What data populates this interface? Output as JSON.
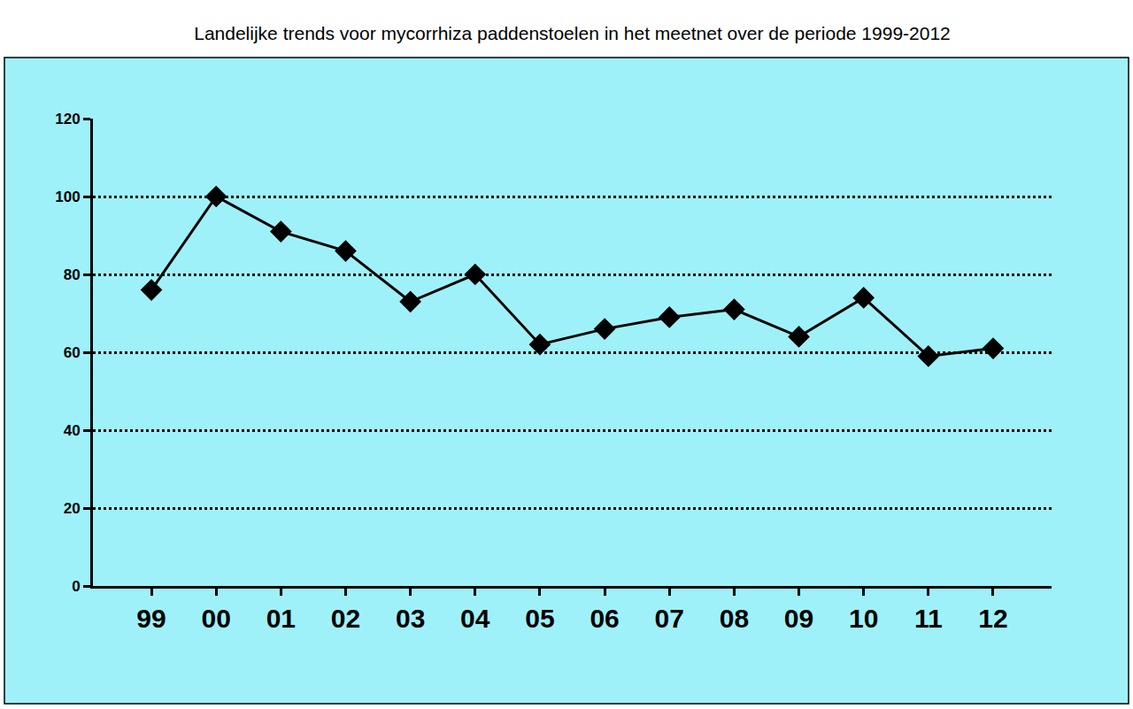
{
  "chart_data": {
    "type": "line",
    "title": "Landelijke trends voor mycorrhiza paddenstoelen in het meetnet over de periode 1999-2012",
    "categories": [
      "99",
      "00",
      "01",
      "02",
      "03",
      "04",
      "05",
      "06",
      "07",
      "08",
      "09",
      "10",
      "11",
      "12"
    ],
    "values": [
      76,
      100,
      91,
      86,
      73,
      80,
      62,
      66,
      69,
      71,
      64,
      74,
      59,
      61
    ],
    "color": "#000000",
    "marker": "diamond",
    "line_style": "solid",
    "ylim": [
      0,
      120
    ],
    "yticks": [
      0,
      20,
      40,
      60,
      80,
      100,
      120
    ],
    "grid": true
  }
}
